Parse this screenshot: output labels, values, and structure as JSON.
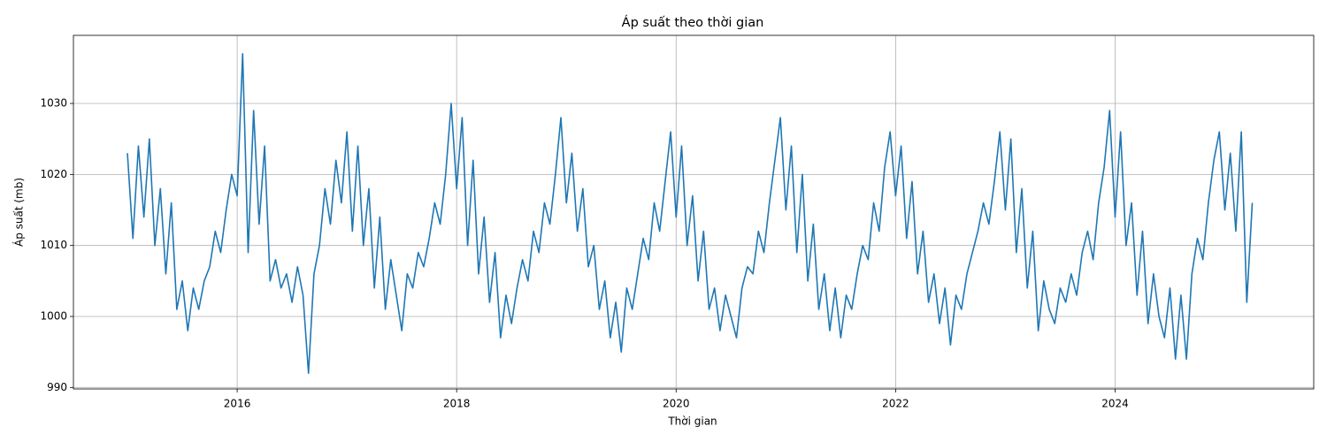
{
  "chart_data": {
    "type": "line",
    "title": "Áp suất theo thời gian",
    "x_label": "Thời gian",
    "y_label": "Áp suất (mb)",
    "x": [
      2015,
      2015.05,
      2015.1,
      2015.15,
      2015.2,
      2015.25,
      2015.3,
      2015.35,
      2015.4,
      2015.45,
      2015.5,
      2015.55,
      2015.6,
      2015.65,
      2015.7,
      2015.75,
      2015.8,
      2015.85,
      2015.9,
      2015.95,
      2016,
      2016.05,
      2016.1,
      2016.15,
      2016.2,
      2016.25,
      2016.3,
      2016.35,
      2016.4,
      2016.45,
      2016.5,
      2016.55,
      2016.6,
      2016.65,
      2016.7,
      2016.75,
      2016.8,
      2016.85,
      2016.9,
      2016.95,
      2017,
      2017.05,
      2017.1,
      2017.15,
      2017.2,
      2017.25,
      2017.3,
      2017.35,
      2017.4,
      2017.45,
      2017.5,
      2017.55,
      2017.6,
      2017.65,
      2017.7,
      2017.75,
      2017.8,
      2017.85,
      2017.9,
      2017.95,
      2018,
      2018.05,
      2018.1,
      2018.15,
      2018.2,
      2018.25,
      2018.3,
      2018.35,
      2018.4,
      2018.45,
      2018.5,
      2018.55,
      2018.6,
      2018.65,
      2018.7,
      2018.75,
      2018.8,
      2018.85,
      2018.9,
      2018.95,
      2019,
      2019.05,
      2019.1,
      2019.15,
      2019.2,
      2019.25,
      2019.3,
      2019.35,
      2019.4,
      2019.45,
      2019.5,
      2019.55,
      2019.6,
      2019.65,
      2019.7,
      2019.75,
      2019.8,
      2019.85,
      2019.9,
      2019.95,
      2020,
      2020.05,
      2020.1,
      2020.15,
      2020.2,
      2020.25,
      2020.3,
      2020.35,
      2020.4,
      2020.45,
      2020.5,
      2020.55,
      2020.6,
      2020.65,
      2020.7,
      2020.75,
      2020.8,
      2020.85,
      2020.9,
      2020.95,
      2021,
      2021.05,
      2021.1,
      2021.15,
      2021.2,
      2021.25,
      2021.3,
      2021.35,
      2021.4,
      2021.45,
      2021.5,
      2021.55,
      2021.6,
      2021.65,
      2021.7,
      2021.75,
      2021.8,
      2021.85,
      2021.9,
      2021.95,
      2022,
      2022.05,
      2022.1,
      2022.15,
      2022.2,
      2022.25,
      2022.3,
      2022.35,
      2022.4,
      2022.45,
      2022.5,
      2022.55,
      2022.6,
      2022.65,
      2022.7,
      2022.75,
      2022.8,
      2022.85,
      2022.9,
      2022.95,
      2023,
      2023.05,
      2023.1,
      2023.15,
      2023.2,
      2023.25,
      2023.3,
      2023.35,
      2023.4,
      2023.45,
      2023.5,
      2023.55,
      2023.6,
      2023.65,
      2023.7,
      2023.75,
      2023.8,
      2023.85,
      2023.9,
      2023.95,
      2024,
      2024.05,
      2024.1,
      2024.15,
      2024.2,
      2024.25,
      2024.3,
      2024.35,
      2024.4,
      2024.45,
      2024.5,
      2024.55,
      2024.6,
      2024.65,
      2024.7,
      2024.75,
      2024.8,
      2024.85,
      2024.9,
      2024.95,
      2025,
      2025.05,
      2025.1,
      2025.15,
      2025.2,
      2025.25
    ],
    "series": [
      {
        "name": "Áp suất",
        "color": "#1f77b4",
        "values": [
          1023,
          1011,
          1024,
          1014,
          1025,
          1010,
          1018,
          1006,
          1016,
          1001,
          1005,
          998,
          1004,
          1001,
          1005,
          1007,
          1012,
          1009,
          1015,
          1020,
          1017,
          1037,
          1009,
          1029,
          1013,
          1024,
          1005,
          1008,
          1004,
          1006,
          1002,
          1007,
          1003,
          992,
          1006,
          1010,
          1018,
          1013,
          1022,
          1016,
          1026,
          1012,
          1024,
          1010,
          1018,
          1004,
          1014,
          1001,
          1008,
          1003,
          998,
          1006,
          1004,
          1009,
          1007,
          1011,
          1016,
          1013,
          1020,
          1030,
          1018,
          1028,
          1010,
          1022,
          1006,
          1014,
          1002,
          1009,
          997,
          1003,
          999,
          1004,
          1008,
          1005,
          1012,
          1009,
          1016,
          1013,
          1020,
          1028,
          1016,
          1023,
          1012,
          1018,
          1007,
          1010,
          1001,
          1005,
          997,
          1002,
          995,
          1004,
          1001,
          1006,
          1011,
          1008,
          1016,
          1012,
          1019,
          1026,
          1014,
          1024,
          1010,
          1017,
          1005,
          1012,
          1001,
          1004,
          998,
          1003,
          1000,
          997,
          1004,
          1007,
          1006,
          1012,
          1009,
          1016,
          1022,
          1028,
          1015,
          1024,
          1009,
          1020,
          1005,
          1013,
          1001,
          1006,
          998,
          1004,
          997,
          1003,
          1001,
          1006,
          1010,
          1008,
          1016,
          1012,
          1021,
          1026,
          1017,
          1024,
          1011,
          1019,
          1006,
          1012,
          1002,
          1006,
          999,
          1004,
          996,
          1003,
          1001,
          1006,
          1009,
          1012,
          1016,
          1013,
          1019,
          1026,
          1015,
          1025,
          1009,
          1018,
          1004,
          1012,
          998,
          1005,
          1001,
          999,
          1004,
          1002,
          1006,
          1003,
          1009,
          1012,
          1008,
          1016,
          1021,
          1029,
          1014,
          1026,
          1010,
          1016,
          1003,
          1012,
          999,
          1006,
          1000,
          997,
          1004,
          994,
          1003,
          994,
          1006,
          1011,
          1008,
          1016,
          1022,
          1026,
          1015,
          1023,
          1012,
          1026,
          1002,
          1016
        ]
      }
    ],
    "xlim": [
      2014.508,
      2025.81
    ],
    "ylim": [
      989.79,
      1039.59
    ],
    "xticks": [
      2016,
      2018,
      2020,
      2022,
      2024
    ],
    "yticks": [
      990,
      1000,
      1010,
      1020,
      1030
    ],
    "grid": true
  }
}
